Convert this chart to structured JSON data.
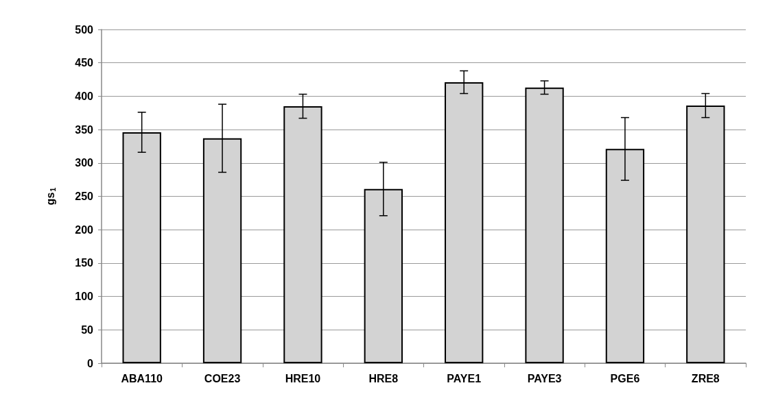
{
  "chart_data": {
    "type": "bar",
    "ylabel": "gs$_{1}$",
    "categories": [
      "ABA110",
      "COE23",
      "HRE10",
      "HRE8",
      "PAYE1",
      "PAYE3",
      "PGE6",
      "ZRE8"
    ],
    "values": [
      346,
      337,
      385,
      261,
      421,
      413,
      321,
      386
    ],
    "errors": [
      30,
      51,
      18,
      40,
      17,
      10,
      47,
      18
    ],
    "color": "#d3d3d3",
    "ylim": [
      0,
      500
    ],
    "yticks": [
      0,
      50,
      100,
      150,
      200,
      250,
      300,
      350,
      400,
      450,
      500
    ],
    "grid": "y"
  }
}
